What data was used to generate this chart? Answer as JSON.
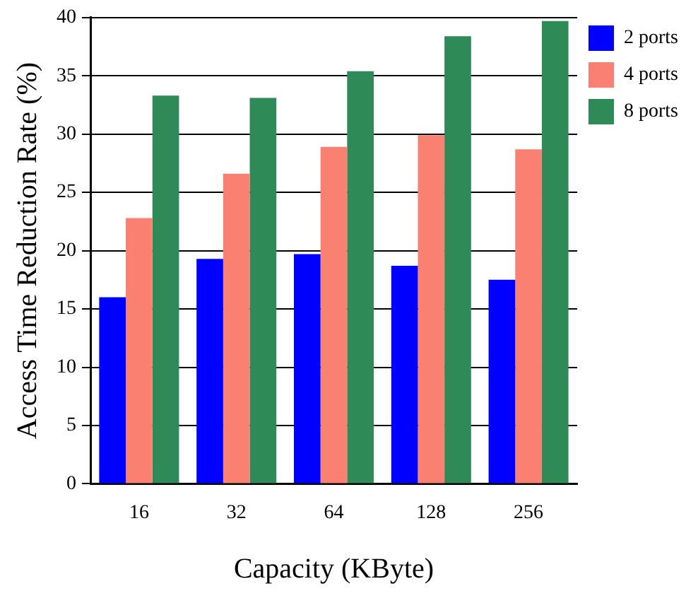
{
  "chart_data": {
    "type": "bar",
    "xlabel": "Capacity (KByte)",
    "ylabel": "Access Time Reduction Rate (%)",
    "categories": [
      "16",
      "32",
      "64",
      "128",
      "256"
    ],
    "series": [
      {
        "name": "2 ports",
        "color": "#0000ff",
        "values": [
          16.0,
          19.3,
          19.7,
          18.7,
          17.5
        ]
      },
      {
        "name": "4 ports",
        "color": "#fa8072",
        "values": [
          22.8,
          26.6,
          28.9,
          29.9,
          28.7
        ]
      },
      {
        "name": "8 ports",
        "color": "#2e8b57",
        "values": [
          33.3,
          33.1,
          35.4,
          38.4,
          39.7
        ]
      }
    ],
    "ylim": [
      0,
      40
    ],
    "yticks": [
      0,
      5,
      10,
      15,
      20,
      25,
      30,
      35,
      40
    ],
    "grid": "y",
    "legend": "top right"
  }
}
